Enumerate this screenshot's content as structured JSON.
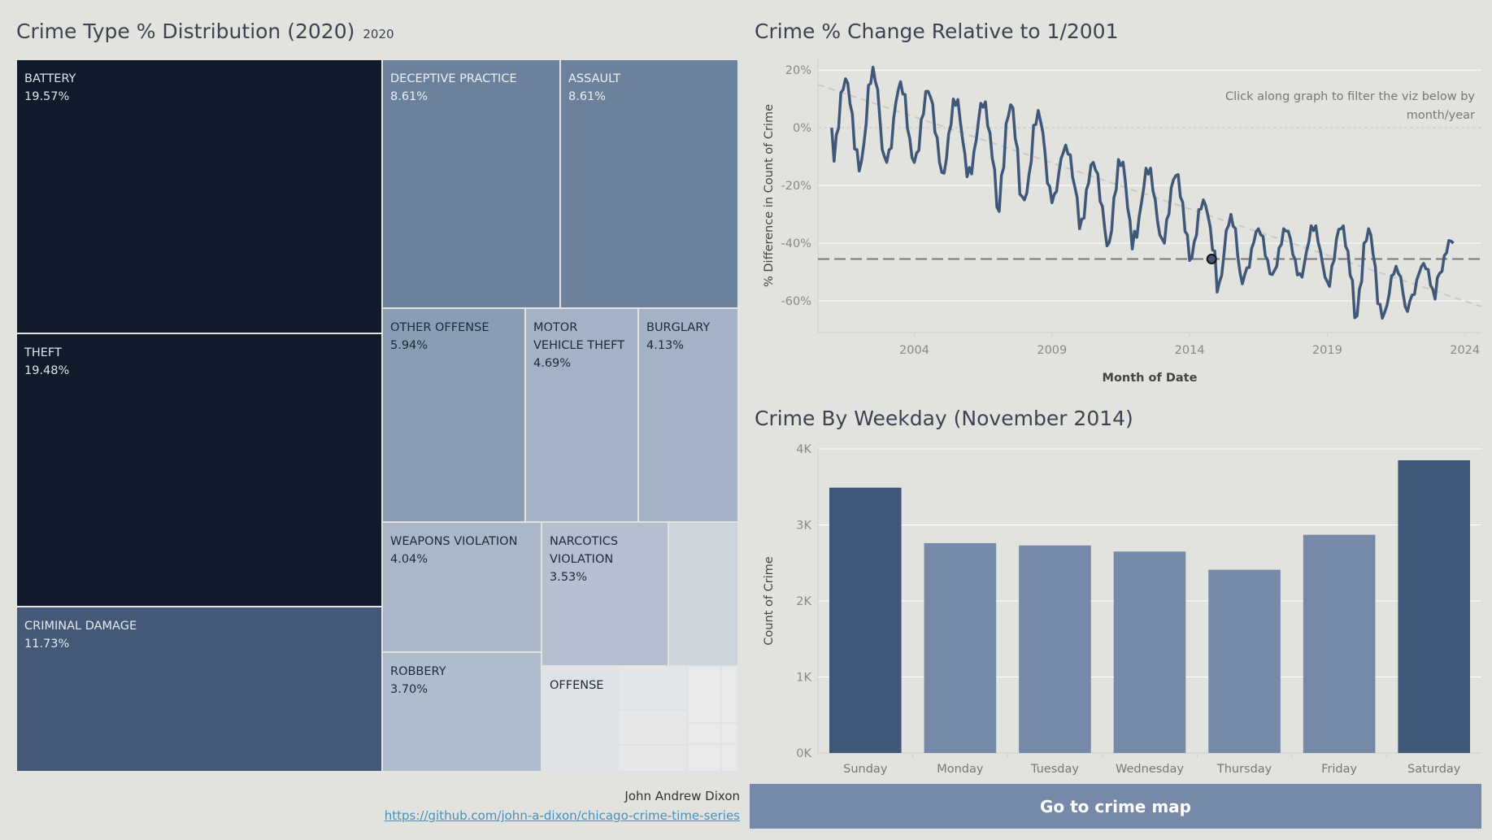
{
  "treemap": {
    "title": "Crime Type % Distribution (2020)",
    "tag": "2020"
  },
  "line": {
    "title": "Crime % Change Relative to 1/2001",
    "hint_line1": "Click along graph to filter the viz below by",
    "hint_line2": "month/year"
  },
  "bars": {
    "title": "Crime By Weekday (November 2014)"
  },
  "credit": {
    "name": "John Andrew Dixon",
    "link": "https://github.com/john-a-dixon/chicago-crime-time-series"
  },
  "button": {
    "label": "Go to crime map"
  },
  "colors": {
    "darkest": "#0f1b2a",
    "dark": "#3f5778",
    "mid": "#6b819c",
    "light": "#8a9db5",
    "lighter": "#a3b2c4",
    "pale": "#b4c0cf",
    "bar_highlight": "#3f5778",
    "bar_normal": "#7689a8",
    "line": "#3f5778"
  },
  "chart_data": [
    {
      "type": "treemap",
      "items": [
        {
          "name": "BATTERY",
          "pct": "19.57%",
          "value": 19.57,
          "color": "#0f1b2a",
          "text_color": "#dfe3e8"
        },
        {
          "name": "THEFT",
          "pct": "19.48%",
          "value": 19.48,
          "color": "#0f1b2a",
          "text_color": "#dfe3e8"
        },
        {
          "name": "CRIMINAL DAMAGE",
          "pct": "11.73%",
          "value": 11.73,
          "color": "#435977",
          "text_color": "#e6e9ee"
        },
        {
          "name": "DECEPTIVE PRACTICE",
          "pct": "8.61%",
          "value": 8.61,
          "color": "#6b819c",
          "text_color": "#eef0f3"
        },
        {
          "name": "ASSAULT",
          "pct": "8.61%",
          "value": 8.61,
          "color": "#6b819c",
          "text_color": "#eef0f3"
        },
        {
          "name": "OTHER OFFENSE",
          "pct": "5.94%",
          "value": 5.94,
          "color": "#8a9db5",
          "text_color": "#1f2a38"
        },
        {
          "name": "MOTOR VEHICLE THEFT",
          "pct": "4.69%",
          "value": 4.69,
          "color": "#a3b2c4",
          "text_color": "#1f2a38"
        },
        {
          "name": "BURGLARY",
          "pct": "4.13%",
          "value": 4.13,
          "color": "#a3b2c4",
          "text_color": "#1f2a38"
        },
        {
          "name": "WEAPONS VIOLATION",
          "pct": "4.04%",
          "value": 4.04,
          "color": "#a9b7c8",
          "text_color": "#1f2a38"
        },
        {
          "name": "NARCOTICS VIOLATION",
          "pct": "3.53%",
          "value": 3.53,
          "color": "#b4c0cf",
          "text_color": "#1f2a38"
        },
        {
          "name": "ROBBERY",
          "pct": "3.70%",
          "value": 3.7,
          "color": "#afbccc",
          "text_color": "#1f2a38"
        },
        {
          "name": "OFFENSE",
          "pct": "",
          "value": 1.2,
          "color": "#dfe3e8",
          "text_color": "#1f2a38"
        }
      ]
    },
    {
      "type": "line",
      "title": "Crime % Change Relative to 1/2001",
      "xlabel": "Month of Date",
      "ylabel": "% Difference in Count of Crime",
      "xlim": [
        2000.5,
        2024.6
      ],
      "ylim": [
        -71,
        24
      ],
      "x_ticks": [
        2004,
        2009,
        2014,
        2019,
        2024
      ],
      "y_ticks": [
        20,
        0,
        -20,
        -40,
        -60
      ],
      "y_tick_labels": [
        "20%",
        "0%",
        "-20%",
        "-40%",
        "-60%"
      ],
      "reference_line": -45.5,
      "trend": {
        "from": [
          2000.5,
          15
        ],
        "to": [
          2024.6,
          -62
        ]
      },
      "selected_point": {
        "x": 2014.8,
        "y": -45.5
      },
      "annual_yearly": [
        {
          "year": 2001,
          "min": -12,
          "max": 17
        },
        {
          "year": 2002,
          "min": -15,
          "max": 21
        },
        {
          "year": 2003,
          "min": -12,
          "max": 16
        },
        {
          "year": 2004,
          "min": -12,
          "max": 13
        },
        {
          "year": 2005,
          "min": -17,
          "max": 10
        },
        {
          "year": 2006,
          "min": -16,
          "max": 9
        },
        {
          "year": 2007,
          "min": -29,
          "max": 8
        },
        {
          "year": 2008,
          "min": -25,
          "max": 6
        },
        {
          "year": 2009,
          "min": -26,
          "max": -6
        },
        {
          "year": 2010,
          "min": -35,
          "max": -12
        },
        {
          "year": 2011,
          "min": -42,
          "max": -11
        },
        {
          "year": 2012,
          "min": -38,
          "max": -14
        },
        {
          "year": 2013,
          "min": -40,
          "max": -16
        },
        {
          "year": 2014,
          "min": -46,
          "max": -25
        },
        {
          "year": 2015,
          "min": -57,
          "max": -30
        },
        {
          "year": 2016,
          "min": -51,
          "max": -35
        },
        {
          "year": 2017,
          "min": -51,
          "max": -35
        },
        {
          "year": 2018,
          "min": -52,
          "max": -34
        },
        {
          "year": 2019,
          "min": -55,
          "max": -34
        },
        {
          "year": 2020,
          "min": -66,
          "max": -35
        },
        {
          "year": 2021,
          "min": -66,
          "max": -48
        },
        {
          "year": 2022,
          "min": -60,
          "max": -47
        },
        {
          "year": 2023,
          "min": -52,
          "max": -39
        }
      ]
    },
    {
      "type": "bar",
      "title": "Crime By Weekday (November 2014)",
      "categories": [
        "Sunday",
        "Monday",
        "Tuesday",
        "Wednesday",
        "Thursday",
        "Friday",
        "Saturday"
      ],
      "values": [
        3490,
        2760,
        2730,
        2650,
        2410,
        2870,
        3850
      ],
      "highlight": [
        true,
        false,
        false,
        false,
        false,
        false,
        true
      ],
      "ylabel": "Count of Crime",
      "ylim": [
        0,
        4000
      ],
      "y_ticks": [
        0,
        1000,
        2000,
        3000,
        4000
      ],
      "y_tick_labels": [
        "0K",
        "1K",
        "2K",
        "3K",
        "4K"
      ]
    }
  ]
}
